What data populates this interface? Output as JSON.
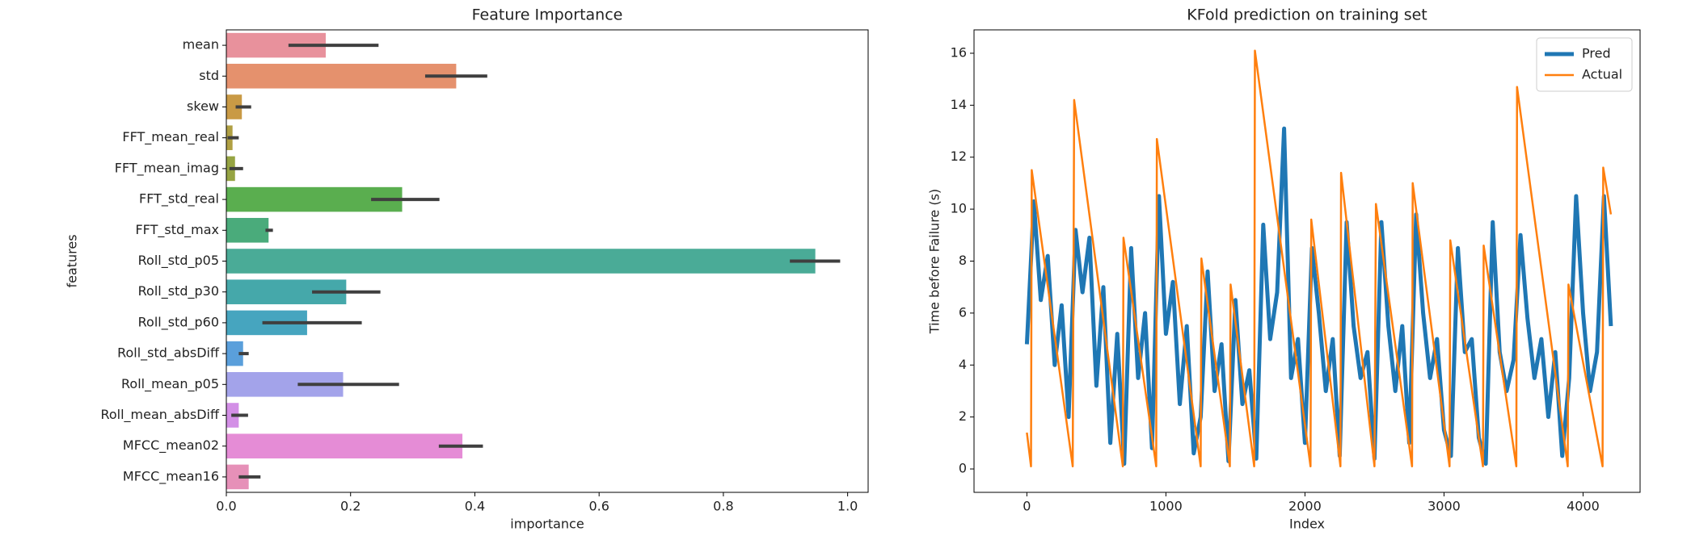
{
  "chart_data": [
    {
      "type": "hbar",
      "title": "Feature Importance",
      "xlabel": "importance",
      "ylabel": "features",
      "categories": [
        "mean",
        "std",
        "skew",
        "FFT_mean_real",
        "FFT_mean_imag",
        "FFT_std_real",
        "FFT_std_max",
        "Roll_std_p05",
        "Roll_std_p30",
        "Roll_std_p60",
        "Roll_std_absDiff",
        "Roll_mean_p05",
        "Roll_mean_absDiff",
        "MFCC_mean02",
        "MFCC_mean16"
      ],
      "values": [
        0.16,
        0.37,
        0.025,
        0.01,
        0.014,
        0.283,
        0.068,
        0.948,
        0.193,
        0.13,
        0.027,
        0.188,
        0.02,
        0.38,
        0.036
      ],
      "ci": [
        [
          0.1,
          0.245
        ],
        [
          0.32,
          0.42
        ],
        [
          0.015,
          0.04
        ],
        [
          0.002,
          0.02
        ],
        [
          0.005,
          0.027
        ],
        [
          0.233,
          0.343
        ],
        [
          0.063,
          0.075
        ],
        [
          0.907,
          0.988
        ],
        [
          0.138,
          0.248
        ],
        [
          0.058,
          0.218
        ],
        [
          0.02,
          0.036
        ],
        [
          0.115,
          0.278
        ],
        [
          0.008,
          0.035
        ],
        [
          0.342,
          0.413
        ],
        [
          0.02,
          0.055
        ]
      ],
      "colors": [
        "#e8919c",
        "#e5916d",
        "#c99a45",
        "#b0a043",
        "#96a443",
        "#5aae4f",
        "#4aab7b",
        "#4aab97",
        "#45a8aa",
        "#46a5bf",
        "#5a9fdb",
        "#a3a3ea",
        "#d38fe6",
        "#e58cd6",
        "#e690b8"
      ],
      "xlim": [
        0,
        1.033
      ],
      "xticks": [
        {
          "value": 0,
          "label": "0.0"
        },
        0.2,
        0.4,
        0.6,
        0.8,
        {
          "value": 1,
          "label": "1.0"
        }
      ]
    },
    {
      "type": "line",
      "title": "KFold prediction on training set",
      "xlabel": "Index",
      "ylabel": "Time before Failure (s)",
      "series": [
        {
          "name": "Pred",
          "color": "#1f77b4",
          "x": [
            0,
            50,
            100,
            150,
            200,
            250,
            300,
            350,
            400,
            450,
            500,
            550,
            600,
            650,
            700,
            750,
            800,
            850,
            900,
            950,
            1000,
            1050,
            1100,
            1150,
            1200,
            1250,
            1300,
            1350,
            1400,
            1450,
            1500,
            1550,
            1600,
            1650,
            1700,
            1750,
            1800,
            1850,
            1900,
            1950,
            2000,
            2050,
            2100,
            2150,
            2200,
            2250,
            2300,
            2350,
            2400,
            2450,
            2500,
            2550,
            2600,
            2650,
            2700,
            2750,
            2800,
            2850,
            2900,
            2950,
            3000,
            3050,
            3100,
            3150,
            3200,
            3250,
            3300,
            3350,
            3400,
            3450,
            3500,
            3550,
            3600,
            3650,
            3700,
            3750,
            3800,
            3850,
            3900,
            3950,
            4000,
            4050,
            4100,
            4150,
            4200
          ],
          "values": [
            4.8,
            10.3,
            6.5,
            8.2,
            4.0,
            6.3,
            2.0,
            9.2,
            6.8,
            8.9,
            3.2,
            7.0,
            1.0,
            5.2,
            0.2,
            8.5,
            3.5,
            6.0,
            0.8,
            10.5,
            5.2,
            7.2,
            2.5,
            5.5,
            0.6,
            2.0,
            7.6,
            3.0,
            4.8,
            0.3,
            6.5,
            2.5,
            3.8,
            0.4,
            9.4,
            5.0,
            6.8,
            13.1,
            3.5,
            5.0,
            1.0,
            8.5,
            6.0,
            3.0,
            5.0,
            0.5,
            9.5,
            5.5,
            3.5,
            4.5,
            0.4,
            9.5,
            5.5,
            3.0,
            5.5,
            1.0,
            9.8,
            6.0,
            3.5,
            5.0,
            1.5,
            0.5,
            8.5,
            4.5,
            5.0,
            1.2,
            0.2,
            9.5,
            4.5,
            3.0,
            4.2,
            9.0,
            5.8,
            3.5,
            5.0,
            2.0,
            4.5,
            0.5,
            3.5,
            10.5,
            6.0,
            3.0,
            4.5,
            10.5,
            5.5
          ]
        },
        {
          "name": "Actual",
          "color": "#ff7f0e",
          "x": [
            0,
            30,
            35,
            330,
            340,
            690,
            695,
            930,
            935,
            1250,
            1255,
            1460,
            1465,
            1635,
            1640,
            2040,
            2045,
            2255,
            2260,
            2500,
            2510,
            2770,
            2775,
            3040,
            3045,
            3280,
            3285,
            3520,
            3525,
            3890,
            3895,
            4140,
            4145,
            4200
          ],
          "values": [
            1.4,
            0.1,
            11.5,
            0.1,
            14.2,
            0.1,
            8.9,
            0.1,
            12.7,
            0.1,
            8.1,
            0.1,
            7.1,
            0.1,
            16.1,
            0.1,
            9.6,
            0.1,
            11.4,
            0.1,
            10.2,
            0.1,
            11.0,
            0.1,
            8.8,
            0.1,
            8.6,
            0.1,
            14.7,
            0.1,
            7.1,
            0.1,
            11.6,
            9.8
          ]
        }
      ],
      "xlim": [
        -380,
        4410
      ],
      "ylim": [
        -0.9,
        16.9
      ],
      "xticks": [
        0,
        1000,
        2000,
        3000,
        4000
      ],
      "yticks": [
        0,
        2,
        4,
        6,
        8,
        10,
        12,
        14,
        16
      ],
      "legend": "upper right"
    }
  ]
}
